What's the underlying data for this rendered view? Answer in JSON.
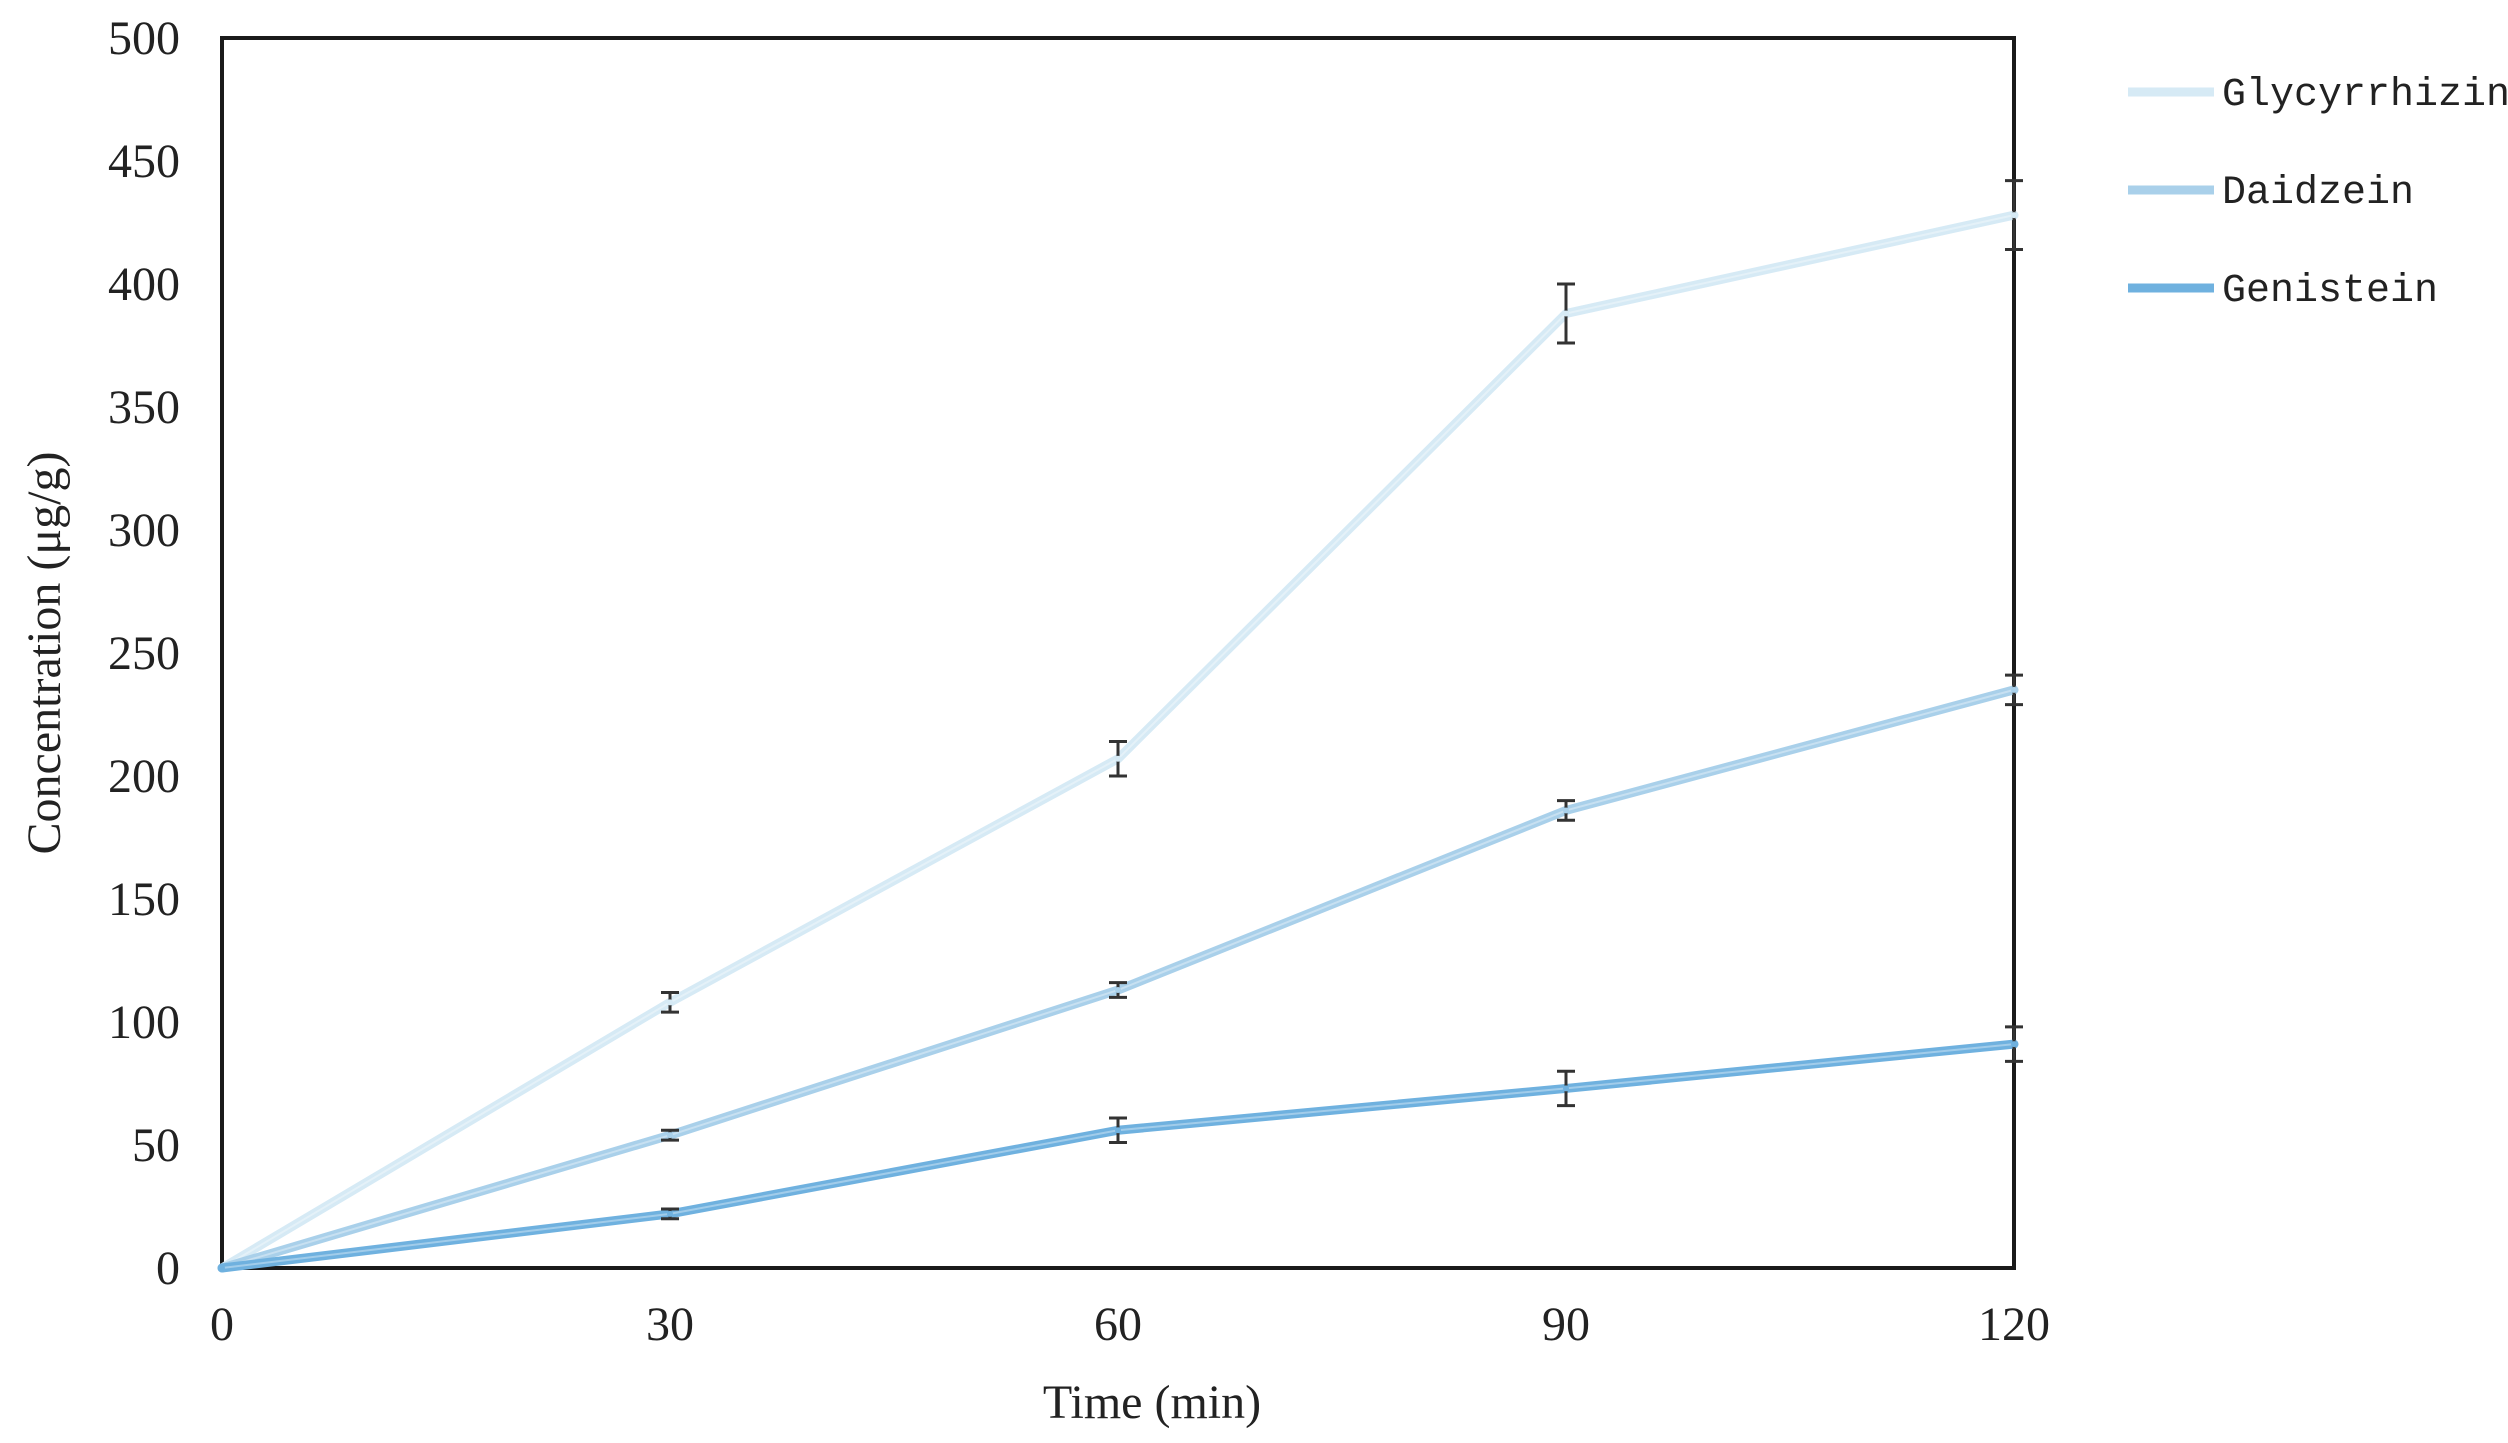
{
  "chart_data": {
    "type": "line",
    "title": "",
    "xlabel": "Time (min)",
    "ylabel": "Concentration (μg/g)",
    "x": [
      0,
      30,
      60,
      90,
      120
    ],
    "xticks": [
      "0",
      "30",
      "60",
      "90",
      "120"
    ],
    "yticks": [
      "0",
      "50",
      "100",
      "150",
      "200",
      "250",
      "300",
      "350",
      "400",
      "450",
      "500"
    ],
    "xlim": [
      0,
      120
    ],
    "ylim": [
      0,
      500
    ],
    "grid": false,
    "legend_position": "right",
    "series": [
      {
        "name": "Glycyrrhizin",
        "color": "#d6eaf5",
        "values": [
          0,
          108,
          207,
          388,
          428
        ],
        "errors": [
          0,
          4,
          7,
          12,
          14
        ]
      },
      {
        "name": "Daidzein",
        "color": "#a9d0ea",
        "values": [
          0,
          54,
          113,
          186,
          235
        ],
        "errors": [
          0,
          2,
          3,
          4,
          6
        ]
      },
      {
        "name": "Genistein",
        "color": "#6fb1df",
        "values": [
          0,
          22,
          56,
          73,
          91
        ],
        "errors": [
          0,
          2,
          5,
          7,
          7
        ]
      }
    ]
  }
}
